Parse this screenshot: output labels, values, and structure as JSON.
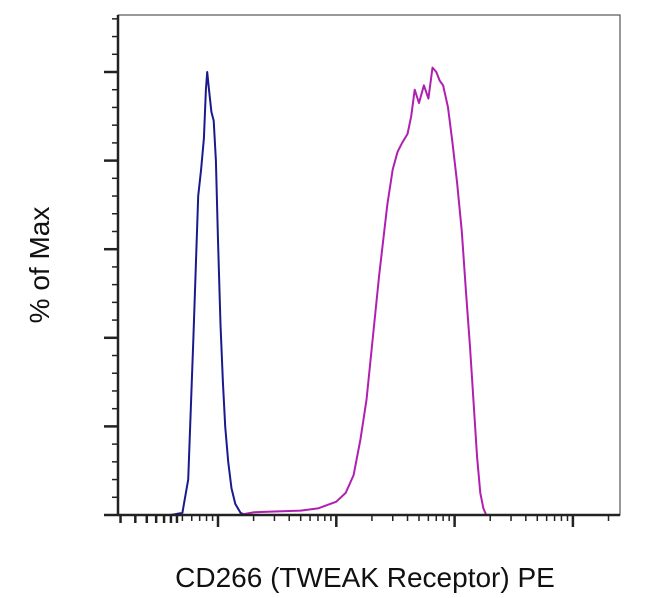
{
  "chart_data": {
    "type": "line",
    "title": "",
    "xlabel": "CD266 (TWEAK Receptor) PE",
    "ylabel": "% of Max",
    "x_scale": "log",
    "grid": false,
    "legend": "none",
    "series": [
      {
        "color": "#1a1a8c",
        "points": [
          [
            0.25,
            0
          ],
          [
            0.4,
            0
          ],
          [
            0.5,
            0.5
          ],
          [
            0.56,
            8
          ],
          [
            0.62,
            40
          ],
          [
            0.68,
            72
          ],
          [
            0.72,
            78
          ],
          [
            0.76,
            85
          ],
          [
            0.79,
            96
          ],
          [
            0.81,
            100
          ],
          [
            0.84,
            96
          ],
          [
            0.88,
            91
          ],
          [
            0.92,
            89
          ],
          [
            0.96,
            80
          ],
          [
            1.0,
            62
          ],
          [
            1.05,
            43
          ],
          [
            1.1,
            30
          ],
          [
            1.15,
            20
          ],
          [
            1.22,
            12
          ],
          [
            1.3,
            6
          ],
          [
            1.4,
            2.5
          ],
          [
            1.55,
            0.5
          ],
          [
            1.7,
            0
          ],
          [
            5000,
            0
          ]
        ]
      },
      {
        "color": "#b01fb0",
        "points": [
          [
            0.25,
            0
          ],
          [
            1.5,
            0
          ],
          [
            2.0,
            0.6
          ],
          [
            3.0,
            0.8
          ],
          [
            5.0,
            1.0
          ],
          [
            7.0,
            1.5
          ],
          [
            10,
            3
          ],
          [
            12,
            5
          ],
          [
            14,
            9
          ],
          [
            16,
            17
          ],
          [
            18,
            26
          ],
          [
            20,
            38
          ],
          [
            23,
            54
          ],
          [
            27,
            70
          ],
          [
            30,
            78
          ],
          [
            33,
            82
          ],
          [
            36,
            84
          ],
          [
            40,
            86
          ],
          [
            43,
            90
          ],
          [
            46,
            96
          ],
          [
            50,
            93
          ],
          [
            55,
            97
          ],
          [
            60,
            94
          ],
          [
            65,
            101
          ],
          [
            70,
            100
          ],
          [
            75,
            98
          ],
          [
            80,
            97
          ],
          [
            88,
            92
          ],
          [
            96,
            84
          ],
          [
            105,
            75
          ],
          [
            115,
            64
          ],
          [
            125,
            50
          ],
          [
            135,
            38
          ],
          [
            145,
            25
          ],
          [
            155,
            13
          ],
          [
            165,
            5
          ],
          [
            175,
            1.5
          ],
          [
            185,
            0
          ],
          [
            5000,
            0
          ]
        ]
      }
    ],
    "axis_color": "#222222"
  }
}
